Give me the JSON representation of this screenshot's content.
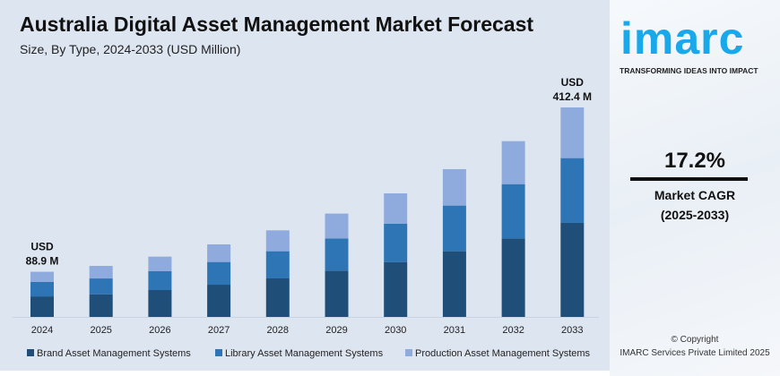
{
  "title": "Australia Digital Asset Management Market Forecast",
  "subtitle": "Size, By Type, 2024-2033 (USD Million)",
  "chart_data": {
    "type": "bar",
    "stacked": true,
    "categories": [
      "2024",
      "2025",
      "2026",
      "2027",
      "2028",
      "2029",
      "2030",
      "2031",
      "2032",
      "2033"
    ],
    "series": [
      {
        "name": "Brand Asset Management Systems",
        "color": "#1f4e79",
        "values": [
          40.4,
          44.6,
          52.9,
          63.4,
          75.8,
          91.1,
          108.1,
          129.3,
          154.5,
          185.1
        ]
      },
      {
        "name": "Library Asset Management Systems",
        "color": "#2e75b6",
        "values": [
          28.4,
          31.1,
          37.0,
          44.7,
          53.5,
          63.5,
          75.2,
          89.9,
          106.9,
          127.5
        ]
      },
      {
        "name": "Production Asset Management Systems",
        "color": "#8faadc",
        "values": [
          20.1,
          24.7,
          28.8,
          34.7,
          41.1,
          48.8,
          59.9,
          71.7,
          84.6,
          99.8
        ]
      }
    ],
    "annotations": [
      {
        "category": "2024",
        "line1": "USD",
        "line2": "88.9 M"
      },
      {
        "category": "2033",
        "line1": "USD",
        "line2": "412.4 M"
      }
    ],
    "ylim": [
      0,
      412.4
    ],
    "grid": false,
    "legend": "bottom"
  },
  "side": {
    "logo": "imarc",
    "tagline": "TRANSFORMING IDEAS INTO IMPACT",
    "cagr_value": "17.2%",
    "cagr_label": "Market CAGR",
    "cagr_period": "(2025-2033)",
    "copyright": "© Copyright",
    "company": "IMARC Services Private Limited 2025"
  }
}
